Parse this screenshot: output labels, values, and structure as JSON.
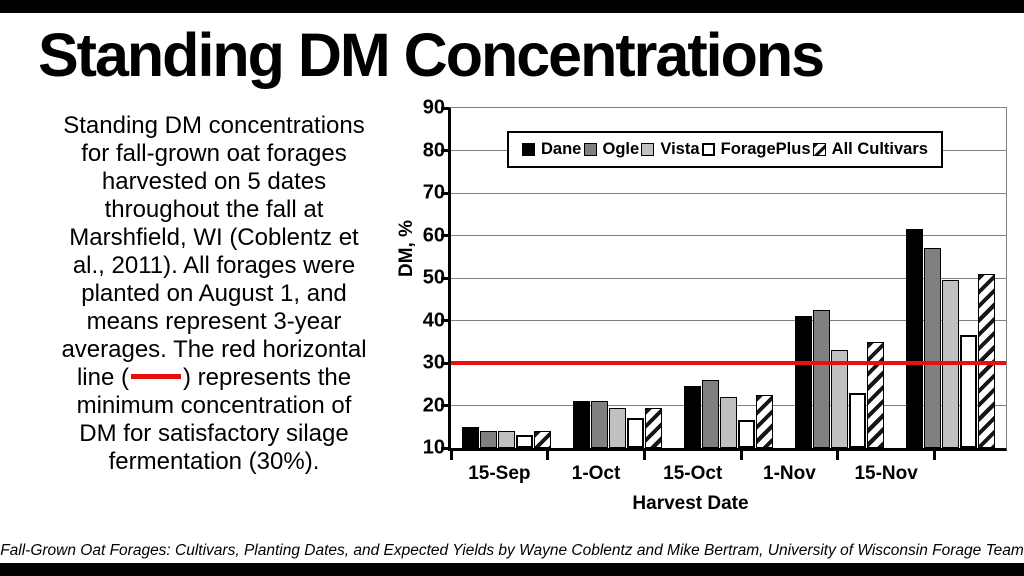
{
  "slide": {
    "title": "Standing DM Concentrations",
    "body_lines": [
      "Standing DM concentrations",
      "for fall-grown oat forages",
      "harvested on 5 dates",
      "throughout the fall at",
      "Marshfield, WI (Coblentz et",
      "al., 2011). All forages were",
      "planted on August 1, and",
      "means represent 3-year",
      "averages. The red horizontal",
      "line ([redline]) represents the",
      "minimum concentration of",
      "DM for satisfactory silage",
      "fermentation (30%)."
    ],
    "footer": "Fall-Grown Oat Forages: Cultivars, Planting Dates, and Expected Yields by Wayne Coblentz and Mike Bertram, University of Wisconsin Forage Team",
    "accent_red": "#e8100e"
  },
  "chart_data": {
    "type": "bar",
    "categories": [
      "15-Sep",
      "1-Oct",
      "15-Oct",
      "1-Nov",
      "15-Nov"
    ],
    "series": [
      {
        "name": "Dane",
        "style": "solid-black",
        "values": [
          15,
          21,
          24.5,
          41,
          61.5
        ]
      },
      {
        "name": "Ogle",
        "style": "dark-gray",
        "values": [
          14,
          21,
          26,
          42.5,
          57
        ]
      },
      {
        "name": "Vista",
        "style": "light-gray",
        "values": [
          14,
          19.5,
          22,
          33,
          49.5
        ]
      },
      {
        "name": "ForagePlus",
        "style": "white-outline",
        "values": [
          13,
          17,
          16.5,
          23,
          36.5
        ]
      },
      {
        "name": "All Cultivars",
        "style": "diagonal-hatch",
        "values": [
          14,
          19.5,
          22.5,
          35,
          51
        ]
      }
    ],
    "xlabel": "Harvest Date",
    "ylabel": "DM, %",
    "ylim": [
      10,
      90
    ],
    "yticks": [
      10,
      20,
      30,
      40,
      50,
      60,
      70,
      80,
      90
    ],
    "grid": "horizontal",
    "legend_position": "top-inside",
    "refline": {
      "value": 30,
      "color": "#e8100e",
      "meaning": "minimum DM for satisfactory silage fermentation"
    }
  }
}
